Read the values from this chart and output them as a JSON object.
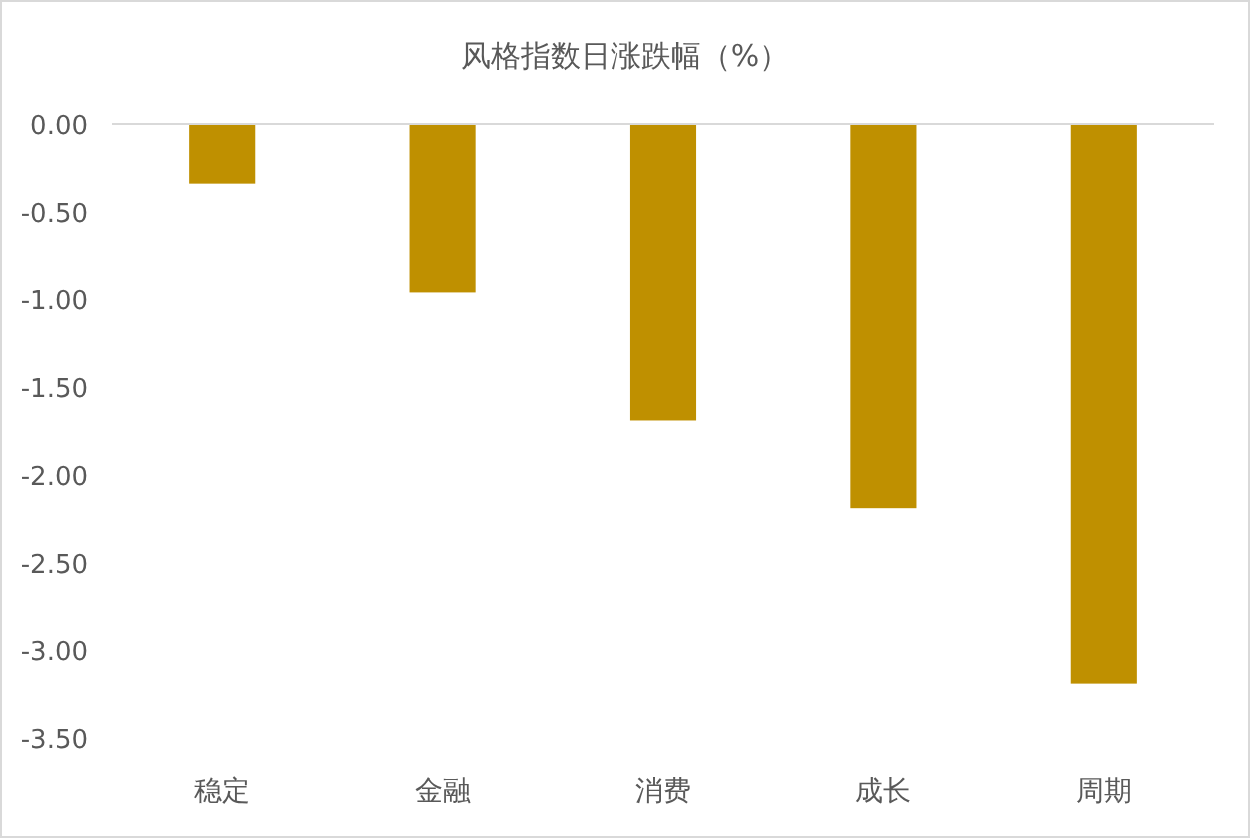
{
  "chart_data": {
    "type": "bar",
    "title": "风格指数日涨跌幅（%）",
    "categories": [
      "稳定",
      "金融",
      "消费",
      "成长",
      "周期"
    ],
    "values": [
      -0.34,
      -0.96,
      -1.69,
      -2.19,
      -3.19
    ],
    "color": "#bf9000",
    "ylim": [
      -3.5,
      0
    ],
    "yticks": [
      {
        "value": 0,
        "label": "0.00"
      },
      {
        "value": -0.5,
        "label": "-0.50"
      },
      {
        "value": -1,
        "label": "-1.00"
      },
      {
        "value": -1.5,
        "label": "-1.50"
      },
      {
        "value": -2,
        "label": "-2.00"
      },
      {
        "value": -2.5,
        "label": "-2.50"
      },
      {
        "value": -3,
        "label": "-3.00"
      },
      {
        "value": -3.5,
        "label": "-3.50"
      }
    ],
    "grid": false
  }
}
